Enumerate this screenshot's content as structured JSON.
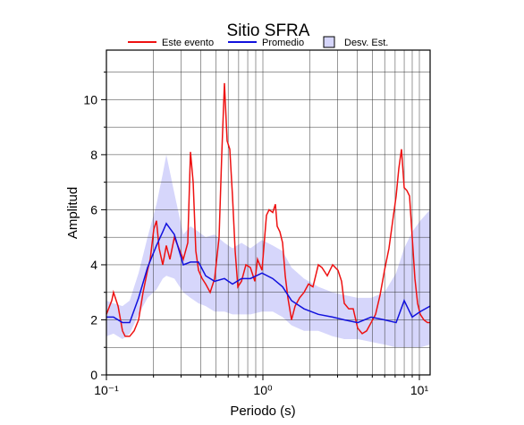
{
  "chart_data": {
    "type": "line",
    "title": "Sitio SFRA",
    "xlabel": "Periodo (s)",
    "ylabel": "Amplitud",
    "xscale": "log",
    "xlim": [
      0.1,
      11.71
    ],
    "ylim": [
      0,
      11.8
    ],
    "xticks": [
      {
        "value": 0.1,
        "label": "10⁻¹"
      },
      {
        "value": 1,
        "label": "10⁰"
      },
      {
        "value": 10,
        "label": "10¹"
      }
    ],
    "xminorticks": [
      0.2,
      0.3,
      0.4,
      0.5,
      0.6,
      0.7,
      0.8,
      0.9,
      2,
      3,
      4,
      5,
      6,
      7,
      8,
      9
    ],
    "yticks": [
      0,
      2,
      4,
      6,
      8,
      10
    ],
    "yminorticks": [
      1,
      3,
      5,
      7,
      9,
      11
    ],
    "grid": true,
    "legend": "top",
    "band": {
      "name": "Desv. Est.",
      "color": "#d6d6fb",
      "x": [
        0.1,
        0.111,
        0.1267,
        0.1408,
        0.1606,
        0.1832,
        0.2089,
        0.2291,
        0.2415,
        0.2718,
        0.31,
        0.3445,
        0.3878,
        0.4309,
        0.4915,
        0.5679,
        0.6393,
        0.7295,
        0.8318,
        0.9869,
        1.156,
        1.336,
        1.524,
        1.832,
        2.261,
        2.791,
        3.311,
        4.034,
        4.915,
        5.986,
        7.104,
        7.997,
        9.0,
        10.13,
        11.71
      ],
      "lower": [
        1.4,
        1.5,
        1.3,
        1.5,
        2.2,
        2.8,
        3.1,
        3.5,
        3.6,
        3.5,
        3.0,
        2.8,
        2.6,
        2.5,
        2.3,
        2.3,
        2.2,
        2.2,
        2.2,
        2.3,
        2.3,
        2.1,
        1.8,
        1.6,
        1.6,
        1.4,
        1.3,
        1.3,
        1.2,
        1.1,
        1.0,
        1.0,
        1.0,
        1.0,
        1.1
      ],
      "upper": [
        2.7,
        2.6,
        2.5,
        2.7,
        3.7,
        5.0,
        6.2,
        7.3,
        8.0,
        6.6,
        5.1,
        5.4,
        5.2,
        5.0,
        5.1,
        4.8,
        4.6,
        4.8,
        4.6,
        4.9,
        4.7,
        4.5,
        3.9,
        3.5,
        3.2,
        3.0,
        2.9,
        2.8,
        2.8,
        3.0,
        3.7,
        4.6,
        5.2,
        5.6,
        6.0
      ]
    },
    "series": [
      {
        "name": "Este evento",
        "color": "#ee1111",
        "x": [
          0.1,
          0.1082,
          0.111,
          0.1187,
          0.1267,
          0.1318,
          0.1408,
          0.1504,
          0.1606,
          0.1715,
          0.1832,
          0.1905,
          0.2009,
          0.2089,
          0.2173,
          0.2291,
          0.2415,
          0.2545,
          0.2718,
          0.2904,
          0.31,
          0.3311,
          0.3445,
          0.3584,
          0.3728,
          0.3878,
          0.4089,
          0.4309,
          0.4603,
          0.4915,
          0.5248,
          0.5459,
          0.5679,
          0.5907,
          0.6145,
          0.6393,
          0.665,
          0.6918,
          0.7295,
          0.779,
          0.8318,
          0.8884,
          0.9241,
          0.9869,
          1.054,
          1.096,
          1.156,
          1.202,
          1.234,
          1.284,
          1.336,
          1.389,
          1.445,
          1.524,
          1.606,
          1.715,
          1.832,
          1.956,
          2.089,
          2.261,
          2.384,
          2.579,
          2.791,
          3.02,
          3.183,
          3.311,
          3.537,
          3.777,
          4.034,
          4.309,
          4.603,
          4.915,
          5.248,
          5.607,
          5.986,
          6.393,
          6.83,
          7.104,
          7.389,
          7.687,
          7.997,
          8.318,
          8.652,
          9.0,
          9.363,
          9.74,
          10.13,
          10.68,
          11.26,
          11.71
        ],
        "values": [
          2.2,
          2.7,
          3.0,
          2.5,
          1.6,
          1.4,
          1.4,
          1.6,
          2.0,
          3.0,
          3.8,
          4.2,
          5.3,
          5.6,
          4.6,
          4.0,
          4.7,
          4.2,
          5.0,
          4.6,
          4.2,
          4.8,
          8.1,
          7.0,
          4.5,
          3.8,
          3.5,
          3.3,
          3.0,
          3.5,
          5.0,
          8.0,
          10.6,
          8.5,
          8.2,
          6.5,
          4.5,
          3.2,
          3.4,
          4.0,
          3.9,
          3.4,
          4.2,
          3.8,
          5.8,
          6.0,
          5.9,
          6.2,
          5.4,
          5.2,
          4.8,
          3.6,
          2.8,
          2.0,
          2.5,
          2.8,
          3.0,
          3.3,
          3.2,
          4.0,
          3.9,
          3.6,
          4.0,
          3.8,
          3.4,
          2.6,
          2.4,
          2.4,
          1.7,
          1.5,
          1.6,
          1.9,
          2.2,
          2.9,
          3.8,
          4.6,
          5.8,
          6.5,
          7.5,
          8.2,
          6.8,
          6.7,
          6.5,
          5.0,
          3.5,
          2.6,
          2.2,
          2.0,
          1.9,
          1.9
        ]
      },
      {
        "name": "Promedio",
        "color": "#1111dd",
        "x": [
          0.1,
          0.111,
          0.1267,
          0.1408,
          0.1606,
          0.1832,
          0.2089,
          0.2291,
          0.2415,
          0.2718,
          0.31,
          0.3445,
          0.3878,
          0.4309,
          0.4915,
          0.5679,
          0.6393,
          0.7295,
          0.8318,
          0.9869,
          1.156,
          1.336,
          1.524,
          1.832,
          2.261,
          2.791,
          3.311,
          4.034,
          4.915,
          5.986,
          7.104,
          7.997,
          9.0,
          10.13,
          11.71
        ],
        "values": [
          2.1,
          2.1,
          1.9,
          1.9,
          2.8,
          3.9,
          4.7,
          5.2,
          5.5,
          5.1,
          4.0,
          4.1,
          4.1,
          3.6,
          3.4,
          3.5,
          3.3,
          3.5,
          3.5,
          3.7,
          3.5,
          3.2,
          2.7,
          2.4,
          2.2,
          2.1,
          2.0,
          1.9,
          2.1,
          2.0,
          1.9,
          2.7,
          2.1,
          2.3,
          2.5
        ]
      }
    ]
  }
}
